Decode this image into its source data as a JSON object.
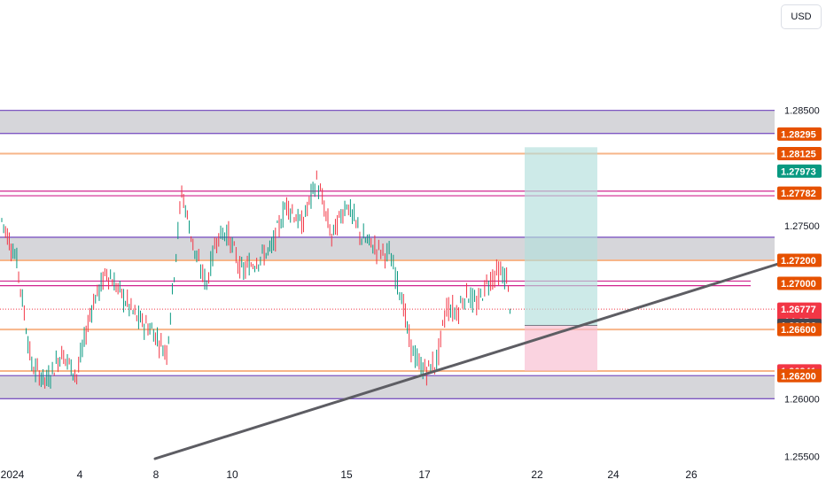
{
  "currency_button": "USD",
  "chart_data": {
    "type": "line",
    "y_axis": {
      "range": [
        1.2535,
        1.2905
      ],
      "ticks": [
        "1.28500",
        "1.27500",
        "1.26000",
        "1.25500"
      ]
    },
    "x_axis": {
      "tick_labels": [
        "2024",
        "4",
        "8",
        "10",
        "15",
        "17",
        "22",
        "24",
        "26"
      ]
    },
    "price_tags": [
      {
        "label": "1.28295",
        "value": 1.28295,
        "color": "#e65100"
      },
      {
        "label": "1.28125",
        "value": 1.28125,
        "color": "#e65100"
      },
      {
        "label": "1.27973",
        "value": 1.27973,
        "color": "#089981"
      },
      {
        "label": "1.27782",
        "value": 1.27782,
        "color": "#e65100"
      },
      {
        "label": "1.27200",
        "value": 1.272,
        "color": "#e65100"
      },
      {
        "label": "1.27000",
        "value": 1.27,
        "color": "#e65100"
      },
      {
        "label": "1.26777",
        "value": 1.26777,
        "color": "#f23645",
        "sub": "14:25"
      },
      {
        "label": "1.26636",
        "value": 1.26636,
        "color": "#434651"
      },
      {
        "label": "1.26600",
        "value": 1.266,
        "color": "#e65100"
      },
      {
        "label": "1.26241",
        "value": 1.26241,
        "color": "#f23645"
      },
      {
        "label": "1.26200",
        "value": 1.262,
        "color": "#e65100"
      }
    ],
    "zones": [
      {
        "from": 1.283,
        "to": 1.285
      },
      {
        "from": 1.272,
        "to": 1.274
      },
      {
        "from": 1.26,
        "to": 1.262
      }
    ],
    "resistance_lines": [
      1.28125,
      1.272,
      1.266,
      1.2624
    ],
    "magenta_lines": [
      1.2776,
      1.278,
      1.2698,
      1.2702
    ],
    "current_price": 1.26777,
    "position": {
      "entry": 1.26636,
      "take_profit": 1.27973,
      "stop_loss": 1.26241,
      "start_day": 20.7,
      "end_day": 23.1
    },
    "trendline": {
      "from": {
        "day": 8,
        "price": 1.2535
      },
      "to": {
        "day": 30.5,
        "price": 1.27
      }
    },
    "series": [
      {
        "name": "",
        "x": [
          0,
          0.6,
          1.2,
          1.8,
          2.4,
          3,
          3.6,
          4.2,
          4.8,
          5.4,
          6,
          6.6,
          7.2,
          7.8,
          8.2,
          8.6,
          9,
          9.6,
          10.2,
          10.8,
          11.4,
          12,
          12.6,
          13.2,
          13.8,
          14.4,
          15,
          15.5,
          16,
          16.3,
          16.7,
          17,
          17.4,
          17.8,
          18.2,
          18.6,
          19,
          19.4,
          19.8,
          20.2,
          20.4
        ],
        "y": [
          1.2755,
          1.272,
          1.2628,
          1.2615,
          1.264,
          1.262,
          1.268,
          1.271,
          1.269,
          1.267,
          1.266,
          1.264,
          1.278,
          1.272,
          1.27,
          1.274,
          1.2745,
          1.271,
          1.272,
          1.273,
          1.277,
          1.275,
          1.279,
          1.274,
          1.277,
          1.274,
          1.273,
          1.2725,
          1.269,
          1.265,
          1.2628,
          1.2625,
          1.2632,
          1.268,
          1.2675,
          1.2692,
          1.268,
          1.27,
          1.271,
          1.2705,
          1.267
        ]
      }
    ]
  }
}
